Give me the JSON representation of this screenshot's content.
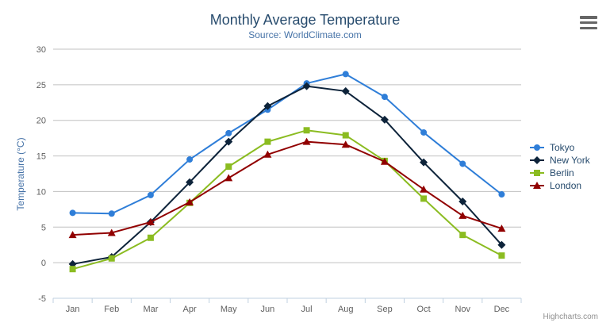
{
  "chart_data": {
    "type": "line",
    "title": "Monthly Average Temperature",
    "subtitle": "Source: WorldClimate.com",
    "xlabel": "",
    "ylabel": "Temperature (°C)",
    "categories": [
      "Jan",
      "Feb",
      "Mar",
      "Apr",
      "May",
      "Jun",
      "Jul",
      "Aug",
      "Sep",
      "Oct",
      "Nov",
      "Dec"
    ],
    "ylim": [
      -5,
      30
    ],
    "ytick_step": 5,
    "ytick_labels": [
      "-5",
      "0",
      "5",
      "10",
      "15",
      "20",
      "25",
      "30"
    ],
    "grid": true,
    "legend_position": "right",
    "series": [
      {
        "name": "Tokyo",
        "color": "#2f7ed8",
        "marker": "circle",
        "values": [
          7.0,
          6.9,
          9.5,
          14.5,
          18.2,
          21.5,
          25.2,
          26.5,
          23.3,
          18.3,
          13.9,
          9.6
        ]
      },
      {
        "name": "New York",
        "color": "#0d233a",
        "marker": "diamond",
        "values": [
          -0.2,
          0.8,
          5.7,
          11.3,
          17.0,
          22.0,
          24.8,
          24.1,
          20.1,
          14.1,
          8.6,
          2.5
        ]
      },
      {
        "name": "Berlin",
        "color": "#8bbc21",
        "marker": "square",
        "values": [
          -0.9,
          0.6,
          3.5,
          8.4,
          13.5,
          17.0,
          18.6,
          17.9,
          14.3,
          9.0,
          3.9,
          1.0
        ]
      },
      {
        "name": "London",
        "color": "#910000",
        "marker": "triangle",
        "values": [
          3.9,
          4.2,
          5.7,
          8.5,
          11.9,
          15.2,
          17.0,
          16.6,
          14.2,
          10.3,
          6.6,
          4.8
        ]
      }
    ],
    "colors": {
      "background": "#ffffff",
      "grid": "#C0C0C0",
      "axis_line": "#C0D0E0",
      "tick": "#C0D0E0",
      "axis_label": "#606060",
      "title": "#274b6d",
      "subtitle": "#4572A7",
      "axis_title": "#4572A7",
      "legend_text": "#274b6d",
      "credits_text": "#909090",
      "menu_icon": "#666666"
    }
  },
  "credits": {
    "label": "Highcharts.com"
  }
}
